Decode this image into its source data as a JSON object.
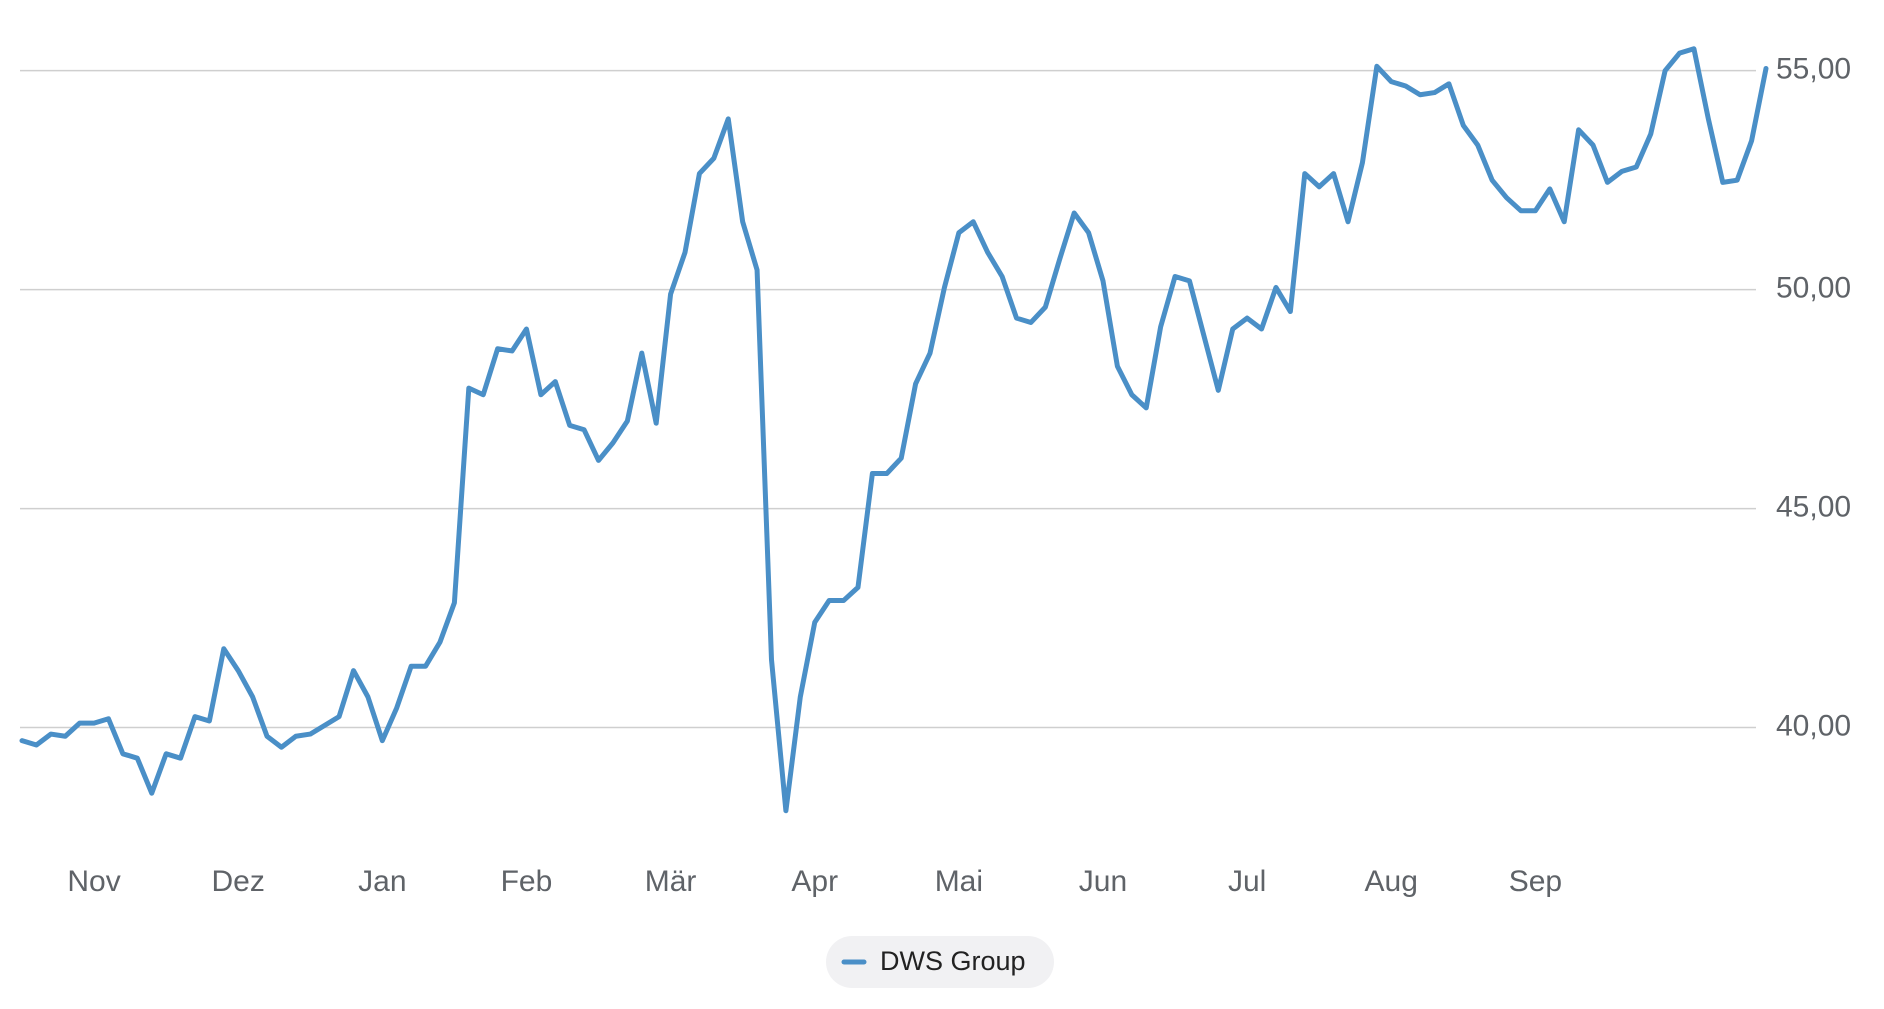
{
  "chart_data": {
    "type": "line",
    "categories": [
      null,
      null,
      null,
      null,
      null,
      "Nov",
      null,
      null,
      null,
      null,
      null,
      null,
      null,
      null,
      null,
      "Dez",
      null,
      null,
      null,
      null,
      null,
      null,
      null,
      null,
      null,
      "Jan",
      null,
      null,
      null,
      null,
      null,
      null,
      null,
      null,
      null,
      "Feb",
      null,
      null,
      null,
      null,
      null,
      null,
      null,
      null,
      null,
      "Mär",
      null,
      null,
      null,
      null,
      null,
      null,
      null,
      null,
      null,
      "Apr",
      null,
      null,
      null,
      null,
      null,
      null,
      null,
      null,
      null,
      "Mai",
      null,
      null,
      null,
      null,
      null,
      null,
      null,
      null,
      null,
      "Jun",
      null,
      null,
      null,
      null,
      null,
      null,
      null,
      null,
      null,
      "Jul",
      null,
      null,
      null,
      null,
      null,
      null,
      null,
      null,
      null,
      "Aug",
      null,
      null,
      null,
      null,
      null,
      null,
      null,
      null,
      null,
      "Sep",
      null,
      null,
      null,
      null,
      null,
      null,
      null,
      null,
      null,
      null,
      null,
      null,
      null,
      null,
      null,
      null
    ],
    "series": [
      {
        "name": "DWS Group",
        "color": "#4a8fc7",
        "values": [
          39.7,
          39.6,
          39.85,
          39.8,
          40.1,
          40.1,
          40.2,
          39.4,
          39.3,
          38.5,
          39.4,
          39.3,
          40.25,
          40.15,
          41.8,
          41.3,
          40.7,
          39.8,
          39.55,
          39.8,
          39.85,
          40.05,
          40.25,
          41.3,
          40.7,
          39.7,
          40.45,
          41.4,
          41.4,
          41.95,
          42.85,
          47.75,
          47.6,
          48.65,
          48.6,
          49.1,
          47.6,
          47.9,
          46.9,
          46.8,
          46.1,
          46.5,
          47.0,
          48.55,
          46.95,
          49.9,
          50.85,
          52.65,
          53.0,
          53.9,
          51.55,
          50.45,
          41.55,
          38.1,
          40.7,
          42.4,
          42.9,
          42.9,
          43.2,
          45.8,
          45.8,
          46.15,
          47.85,
          48.55,
          50.05,
          51.3,
          51.55,
          50.85,
          50.3,
          49.35,
          49.25,
          49.6,
          50.7,
          51.75,
          51.3,
          50.2,
          48.25,
          47.6,
          47.3,
          49.15,
          50.3,
          50.2,
          48.95,
          47.7,
          49.1,
          49.35,
          49.1,
          50.05,
          49.5,
          52.65,
          52.35,
          52.65,
          51.55,
          52.9,
          55.1,
          54.75,
          54.65,
          54.45,
          54.5,
          54.7,
          53.75,
          53.3,
          52.5,
          52.1,
          51.8,
          51.8,
          52.3,
          51.55,
          53.65,
          53.3,
          52.45,
          52.7,
          52.8,
          53.55,
          55.0,
          55.4,
          55.5,
          53.9,
          52.45,
          52.5,
          53.4,
          55.05
        ]
      }
    ],
    "ylim": [
      37.5,
      56.5
    ],
    "yticks": [
      {
        "value": 40,
        "label": "40,00"
      },
      {
        "value": 45,
        "label": "45,00"
      },
      {
        "value": 50,
        "label": "50,00"
      },
      {
        "value": 55,
        "label": "55,00"
      }
    ],
    "grid": true
  }
}
